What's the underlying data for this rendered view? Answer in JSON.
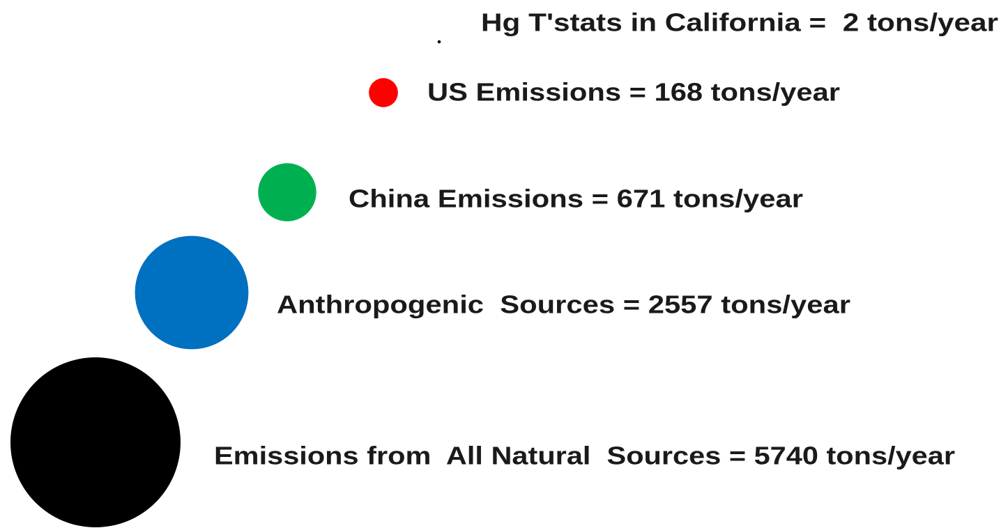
{
  "chart_data": {
    "type": "bubble",
    "categories": [
      "Hg T'stats in California",
      "US Emissions",
      "China Emissions",
      "Anthropogenic Sources",
      "Emissions from All Natural Sources"
    ],
    "values": [
      2,
      168,
      671,
      2557,
      5740
    ],
    "value_labels": [
      "Hg T'stats in California =  2 tons/year",
      "US Emissions = 168 tons/year",
      "China Emissions = 671 tons/year",
      "Anthropogenic  Sources = 2557 tons/year",
      "Emissions from  All Natural  Sources = 5740 tons/year"
    ],
    "colors": [
      "#000000",
      "#ff0000",
      "#00b050",
      "#0070c0",
      "#000000"
    ]
  }
}
